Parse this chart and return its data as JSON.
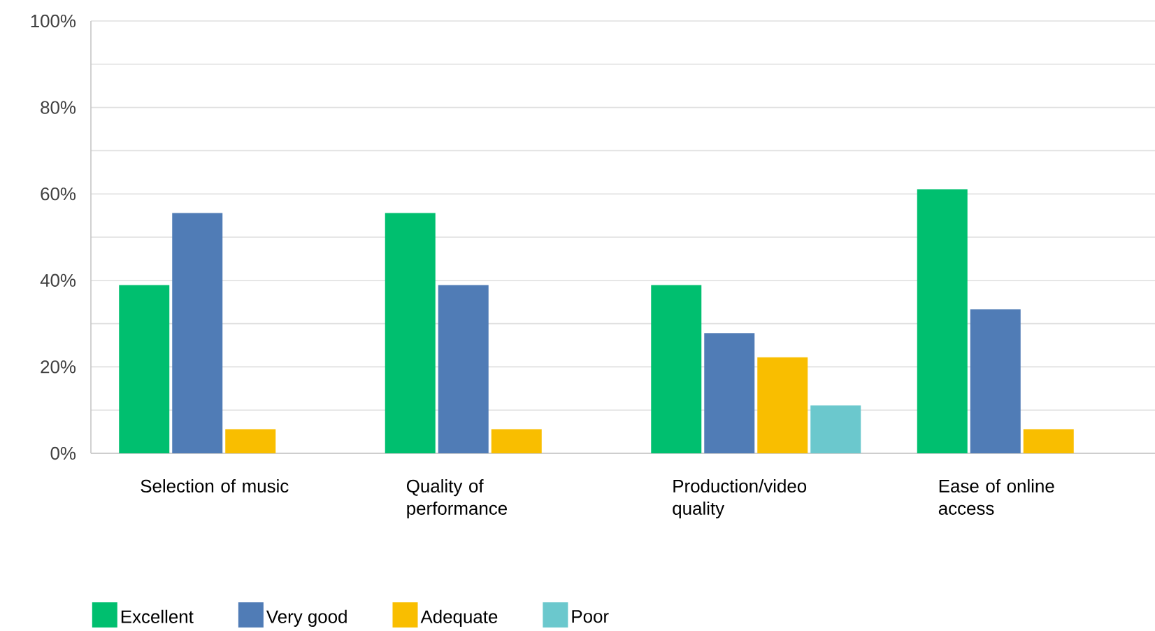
{
  "chart_data": {
    "type": "bar",
    "categories": [
      "Selection of music",
      "Quality of performance",
      "Production/video quality",
      "Ease of online access"
    ],
    "series": [
      {
        "name": "Excellent",
        "color": "#00bf6f",
        "values": [
          38.9,
          55.6,
          38.9,
          61.1
        ]
      },
      {
        "name": "Very good",
        "color": "#507cb6",
        "values": [
          55.6,
          38.9,
          27.8,
          33.3
        ]
      },
      {
        "name": "Adequate",
        "color": "#f9be00",
        "values": [
          5.6,
          5.6,
          22.2,
          5.6
        ]
      },
      {
        "name": "Poor",
        "color": "#6bc8cd",
        "values": [
          0,
          0,
          11.1,
          0
        ]
      }
    ],
    "ylim": [
      0,
      100
    ],
    "yticks": [
      {
        "value": 0,
        "label": "0%"
      },
      {
        "value": 10,
        "label": null
      },
      {
        "value": 20,
        "label": "20%"
      },
      {
        "value": 30,
        "label": null
      },
      {
        "value": 40,
        "label": "40%"
      },
      {
        "value": 50,
        "label": null
      },
      {
        "value": 60,
        "label": "60%"
      },
      {
        "value": 70,
        "label": null
      },
      {
        "value": 80,
        "label": "80%"
      },
      {
        "value": 90,
        "label": null
      },
      {
        "value": 100,
        "label": "100%"
      }
    ],
    "grid": "y",
    "legend": "bottom"
  }
}
